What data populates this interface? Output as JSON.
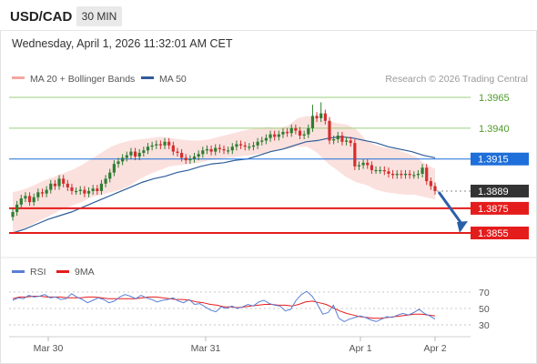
{
  "header": {
    "symbol": "USD/CAD",
    "timeframe": "30 MIN",
    "datetime": "Wednesday, April 1, 2026 11:32:01 AM CET"
  },
  "legend": {
    "bollinger_label": "MA 20 + Bollinger Bands",
    "ma50_label": "MA 50",
    "credit": "Research © 2026 Trading Central",
    "rsi_label": "RSI",
    "rsi_ma_label": "9MA"
  },
  "colors": {
    "up_candle": "#2e7d32",
    "down_candle": "#d32f2f",
    "bollinger": "#f4a8a0",
    "ma50": "#2f5d9a",
    "resistance": "#9bcf7c",
    "pivot": "#1e6fd9",
    "support": "#e51c1c",
    "last_price": "#333333",
    "rsi": "#5a7fd6",
    "rsi_ma": "#e51c1c",
    "arrow": "#2b5fa8"
  },
  "chart_data": {
    "type": "candlestick",
    "symbol": "USD/CAD",
    "timeframe": "30 MIN",
    "price_levels": [
      {
        "label": "1.3965",
        "value": 1.3965,
        "kind": "resistance"
      },
      {
        "label": "1.3940",
        "value": 1.394,
        "kind": "resistance"
      },
      {
        "label": "1.3915",
        "value": 1.3915,
        "kind": "pivot"
      },
      {
        "label": "1.3889",
        "value": 1.3889,
        "kind": "last"
      },
      {
        "label": "1.3875",
        "value": 1.3875,
        "kind": "support"
      },
      {
        "label": "1.3855",
        "value": 1.3855,
        "kind": "support"
      }
    ],
    "x_labels": [
      "Mar 30",
      "Mar 31",
      "Apr 1",
      "Apr 2"
    ],
    "rsi_ticks": [
      "70",
      "50",
      "30"
    ],
    "closes": [
      1.3872,
      1.3878,
      1.3883,
      1.3885,
      1.388,
      1.3884,
      1.3888,
      1.3887,
      1.389,
      1.3895,
      1.3893,
      1.3899,
      1.3895,
      1.3892,
      1.3889,
      1.3889,
      1.389,
      1.3887,
      1.3889,
      1.3891,
      1.3889,
      1.3895,
      1.3899,
      1.3904,
      1.3911,
      1.3913,
      1.3916,
      1.3918,
      1.3921,
      1.3917,
      1.392,
      1.3922,
      1.3925,
      1.3926,
      1.3927,
      1.3926,
      1.3929,
      1.3926,
      1.3921,
      1.392,
      1.3916,
      1.3914,
      1.3915,
      1.3917,
      1.3919,
      1.3922,
      1.3923,
      1.3921,
      1.3924,
      1.3923,
      1.3922,
      1.3922,
      1.3925,
      1.3927,
      1.3926,
      1.3925,
      1.3925,
      1.3926,
      1.3929,
      1.393,
      1.3932,
      1.3935,
      1.3933,
      1.3935,
      1.3937,
      1.3936,
      1.394,
      1.3938,
      1.3934,
      1.3935,
      1.394,
      1.395,
      1.3948,
      1.3952,
      1.3946,
      1.393,
      1.3931,
      1.3934,
      1.3929,
      1.393,
      1.3928,
      1.3909,
      1.391,
      1.3912,
      1.391,
      1.3906,
      1.3906,
      1.3906,
      1.3905,
      1.3903,
      1.3902,
      1.3903,
      1.3902,
      1.3903,
      1.3902,
      1.3902,
      1.3903,
      1.3908,
      1.3897,
      1.3893,
      1.3889
    ],
    "bollinger_upper": [
      1.3888,
      1.389,
      1.3893,
      1.3897,
      1.39,
      1.3903,
      1.3906,
      1.391,
      1.3915,
      1.392,
      1.3925,
      1.3928,
      1.393,
      1.3931,
      1.3932,
      1.3933,
      1.3932,
      1.3931,
      1.393,
      1.393,
      1.3931,
      1.3933,
      1.3935,
      1.3937,
      1.3939,
      1.394,
      1.3941,
      1.394,
      1.3942,
      1.3948,
      1.395,
      1.3948,
      1.3946,
      1.3944,
      1.3943,
      1.3939,
      1.393,
      1.3926,
      1.3924,
      1.3923,
      1.392,
      1.3917,
      1.3911,
      1.3907
    ],
    "bollinger_lower": [
      1.3855,
      1.3858,
      1.3862,
      1.3866,
      1.387,
      1.3874,
      1.3877,
      1.388,
      1.3884,
      1.3886,
      1.3888,
      1.389,
      1.3894,
      1.3899,
      1.3903,
      1.3906,
      1.3909,
      1.391,
      1.3911,
      1.3912,
      1.3914,
      1.3915,
      1.3916,
      1.3917,
      1.3918,
      1.3919,
      1.392,
      1.3922,
      1.3923,
      1.3925,
      1.3925,
      1.392,
      1.3912,
      1.3906,
      1.39,
      1.3896,
      1.3894,
      1.389,
      1.3888,
      1.3887,
      1.3886,
      1.3886,
      1.3884,
      1.3882
    ],
    "ma50": [
      1.3855,
      1.3858,
      1.3862,
      1.3866,
      1.3869,
      1.3872,
      1.3876,
      1.388,
      1.3884,
      1.3888,
      1.3892,
      1.3896,
      1.3899,
      1.3901,
      1.3904,
      1.3906,
      1.3909,
      1.3911,
      1.3912,
      1.3914,
      1.3915,
      1.3918,
      1.3921,
      1.3923,
      1.3926,
      1.3929,
      1.393,
      1.3932,
      1.3933,
      1.3932,
      1.393,
      1.3928,
      1.3925,
      1.3923,
      1.3921,
      1.3918,
      1.3916
    ],
    "rsi": [
      60,
      63,
      62,
      66,
      64,
      65,
      67,
      63,
      64,
      61,
      62,
      68,
      64,
      61,
      57,
      60,
      63,
      61,
      57,
      59,
      64,
      67,
      65,
      62,
      66,
      63,
      61,
      58,
      60,
      61,
      63,
      59,
      57,
      61,
      55,
      56,
      52,
      48,
      46,
      52,
      50,
      53,
      50,
      52,
      55,
      53,
      58,
      60,
      56,
      54,
      53,
      47,
      49,
      60,
      67,
      71,
      65,
      55,
      43,
      45,
      54,
      38,
      34,
      37,
      39,
      41,
      39,
      36,
      34,
      37,
      40,
      39,
      42,
      44,
      42,
      45,
      49,
      44,
      41,
      37
    ],
    "rsi_ma": [
      62,
      64,
      64,
      65,
      65,
      64,
      64,
      64,
      63,
      63,
      63,
      64,
      64,
      63,
      62,
      62,
      62,
      62,
      62,
      63,
      64,
      64,
      63,
      62,
      61,
      61,
      60,
      58,
      57,
      55,
      54,
      52,
      52,
      51,
      52,
      53,
      54,
      55,
      55,
      54,
      54,
      53,
      55,
      58,
      59,
      57,
      55,
      51,
      47,
      44,
      42,
      40,
      39,
      38,
      38,
      39,
      40,
      41,
      42,
      43,
      43,
      42,
      41
    ]
  }
}
